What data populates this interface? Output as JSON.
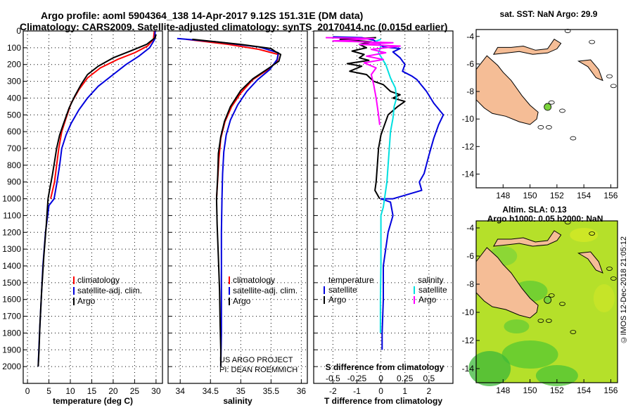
{
  "header": {
    "title_line1": "Argo profile: aoml 5904364_138 14-Apr-2017 9.12S 151.31E (DM data)",
    "title_line2": "Climatology: CARS2009. Satellite-adjusted climatology: synTS_20170414.nc (0.015d earlier)"
  },
  "colors": {
    "climatology": "#ff0000",
    "satellite": "#0000dd",
    "argo": "#000000",
    "salinity_sat": "#00e0e0",
    "salinity_argo": "#ff00ff",
    "land": "#f5bd96",
    "map_bg": "#ffffff"
  },
  "chart_data": [
    {
      "type": "line",
      "name": "temperature-profile",
      "xlabel": "temperature (deg C)",
      "xlim": [
        -1,
        31.5
      ],
      "xticks": [
        0,
        5,
        10,
        15,
        20,
        25,
        30
      ],
      "ylim": [
        0,
        2100
      ],
      "yticks": [
        0,
        100,
        200,
        300,
        400,
        500,
        600,
        700,
        800,
        900,
        1000,
        1100,
        1200,
        1300,
        1400,
        1500,
        1600,
        1700,
        1800,
        1900,
        2000
      ],
      "legend": [
        "climatology",
        "satellite-adj. clim.",
        "Argo"
      ],
      "series": [
        {
          "name": "climatology",
          "color": "#ff0000",
          "points": [
            [
              29.6,
              0
            ],
            [
              29.4,
              50
            ],
            [
              28,
              90
            ],
            [
              25,
              130
            ],
            [
              21,
              170
            ],
            [
              17,
              220
            ],
            [
              14,
              280
            ],
            [
              12,
              350
            ],
            [
              10.2,
              430
            ],
            [
              9,
              520
            ],
            [
              8,
              600
            ],
            [
              7.3,
              700
            ],
            [
              6.8,
              800
            ],
            [
              6.3,
              900
            ],
            [
              5.4,
              1000
            ]
          ]
        },
        {
          "name": "satellite-adj. clim.",
          "color": "#0000dd",
          "points": [
            [
              29.8,
              0
            ],
            [
              29.7,
              50
            ],
            [
              28.5,
              100
            ],
            [
              26,
              150
            ],
            [
              23,
              200
            ],
            [
              20,
              260
            ],
            [
              16.5,
              330
            ],
            [
              14,
              400
            ],
            [
              12,
              470
            ],
            [
              10.2,
              550
            ],
            [
              9,
              620
            ],
            [
              8,
              700
            ],
            [
              7.5,
              800
            ],
            [
              6.9,
              900
            ],
            [
              6.2,
              1000
            ],
            [
              5,
              1040
            ],
            [
              4.2,
              1200
            ],
            [
              3.6,
              1400
            ],
            [
              3.2,
              1600
            ],
            [
              2.8,
              1800
            ],
            [
              2.5,
              2000
            ]
          ]
        },
        {
          "name": "Argo",
          "color": "#000000",
          "points": [
            [
              30,
              20
            ],
            [
              29.8,
              40
            ],
            [
              27.8,
              80
            ],
            [
              24,
              120
            ],
            [
              20,
              160
            ],
            [
              16.5,
              210
            ],
            [
              14,
              260
            ],
            [
              12.5,
              320
            ],
            [
              11,
              390
            ],
            [
              9.7,
              460
            ],
            [
              8.3,
              560
            ],
            [
              7.5,
              620
            ],
            [
              6.8,
              700
            ],
            [
              6.3,
              780
            ],
            [
              5.8,
              860
            ],
            [
              5.2,
              940
            ],
            [
              4.8,
              1000
            ],
            [
              4.4,
              1150
            ],
            [
              3.8,
              1350
            ],
            [
              3.3,
              1550
            ],
            [
              2.9,
              1750
            ],
            [
              2.7,
              1900
            ],
            [
              2.5,
              2000
            ]
          ]
        }
      ]
    },
    {
      "type": "line",
      "name": "salinity-profile",
      "xlabel": "salinity",
      "xlim": [
        33.8,
        36.1
      ],
      "xticks": [
        34,
        34.5,
        35,
        35.5,
        36
      ],
      "ylim": [
        0,
        2100
      ],
      "legend": [
        "climatology",
        "satellite-adj. clim.",
        "Argo"
      ],
      "series": [
        {
          "name": "climatology",
          "color": "#ff0000",
          "points": [
            [
              34.1,
              50
            ],
            [
              34.8,
              80
            ],
            [
              35.3,
              110
            ],
            [
              35.62,
              140
            ],
            [
              35.6,
              180
            ],
            [
              35.45,
              230
            ],
            [
              35.2,
              290
            ],
            [
              35.0,
              370
            ],
            [
              34.85,
              450
            ],
            [
              34.74,
              540
            ],
            [
              34.67,
              640
            ],
            [
              34.64,
              760
            ],
            [
              34.62,
              880
            ],
            [
              34.6,
              1000
            ]
          ]
        },
        {
          "name": "satellite-adj. clim.",
          "color": "#0000dd",
          "points": [
            [
              33.95,
              45
            ],
            [
              34.6,
              65
            ],
            [
              35.3,
              95
            ],
            [
              35.62,
              130
            ],
            [
              35.6,
              170
            ],
            [
              35.48,
              230
            ],
            [
              35.28,
              290
            ],
            [
              35.1,
              360
            ],
            [
              34.95,
              440
            ],
            [
              34.83,
              530
            ],
            [
              34.76,
              620
            ],
            [
              34.72,
              720
            ],
            [
              34.7,
              850
            ],
            [
              34.69,
              1000
            ],
            [
              34.68,
              1200
            ],
            [
              34.68,
              1500
            ],
            [
              34.68,
              1800
            ],
            [
              34.67,
              2000
            ]
          ]
        },
        {
          "name": "Argo",
          "color": "#000000",
          "points": [
            [
              34.2,
              50
            ],
            [
              35.0,
              80
            ],
            [
              35.5,
              105
            ],
            [
              35.58,
              125
            ],
            [
              35.66,
              140
            ],
            [
              35.63,
              180
            ],
            [
              35.45,
              225
            ],
            [
              35.2,
              285
            ],
            [
              35.0,
              355
            ],
            [
              34.83,
              450
            ],
            [
              34.73,
              540
            ],
            [
              34.67,
              630
            ],
            [
              34.63,
              730
            ],
            [
              34.62,
              860
            ],
            [
              34.6,
              1000
            ],
            [
              34.61,
              1150
            ],
            [
              34.63,
              1350
            ],
            [
              34.65,
              1550
            ],
            [
              34.66,
              1750
            ],
            [
              34.67,
              1900
            ],
            [
              34.67,
              2000
            ]
          ]
        }
      ]
    },
    {
      "type": "line",
      "name": "difference-profile",
      "xlabel": "T difference from climatology",
      "xlabel_top": "S difference from climatology",
      "xlim": [
        -2.8,
        3
      ],
      "xticks": [
        -2,
        -1,
        0,
        1,
        2
      ],
      "xticklabels_top": [
        "-0.5",
        "-0.25",
        "0",
        "0.25",
        "0.5"
      ],
      "xticks_top": [
        -2,
        -1,
        0,
        1,
        2
      ],
      "ylim": [
        0,
        2100
      ],
      "legend_left_title": "temperature",
      "legend_right_title": "salinity",
      "legend": [
        "satellite",
        "Argo",
        "satellite",
        "Argo"
      ],
      "series": [
        {
          "name": "temperature satellite",
          "color": "#0000dd",
          "points": [
            [
              -2,
              35
            ],
            [
              -0.8,
              40
            ],
            [
              -0.3,
              55
            ],
            [
              0.1,
              95
            ],
            [
              0.8,
              105
            ],
            [
              0.5,
              125
            ],
            [
              0.8,
              160
            ],
            [
              1.0,
              200
            ],
            [
              0.9,
              240
            ],
            [
              1.3,
              270
            ],
            [
              1.5,
              290
            ],
            [
              1.9,
              360
            ],
            [
              2.2,
              430
            ],
            [
              2.6,
              500
            ],
            [
              2.4,
              560
            ],
            [
              2.2,
              640
            ],
            [
              2.0,
              740
            ],
            [
              1.8,
              850
            ],
            [
              1.6,
              900
            ],
            [
              1.7,
              950
            ],
            [
              0.5,
              1000
            ],
            [
              0,
              1000
            ],
            [
              0.4,
              1020
            ],
            [
              0.5,
              1100
            ],
            [
              0.3,
              1200
            ],
            [
              0.2,
              1300
            ],
            [
              0.1,
              1400
            ],
            [
              0.1,
              1600
            ],
            [
              0.05,
              1800
            ],
            [
              0.05,
              1900
            ]
          ]
        },
        {
          "name": "temperature Argo",
          "color": "#000000",
          "points": [
            [
              -0.2,
              40
            ],
            [
              -1.7,
              50
            ],
            [
              -0.4,
              65
            ],
            [
              -0.9,
              80
            ],
            [
              -0.6,
              100
            ],
            [
              -1.2,
              120
            ],
            [
              -0.7,
              140
            ],
            [
              -0.9,
              160
            ],
            [
              -0.5,
              175
            ],
            [
              -1.4,
              195
            ],
            [
              -0.8,
              210
            ],
            [
              -1.3,
              240
            ],
            [
              -0.6,
              260
            ],
            [
              -0.3,
              300
            ],
            [
              0.1,
              320
            ],
            [
              0.4,
              360
            ],
            [
              0.8,
              380
            ],
            [
              0.5,
              400
            ],
            [
              1.0,
              420
            ],
            [
              0.7,
              450
            ],
            [
              0.3,
              500
            ],
            [
              0.15,
              560
            ],
            [
              0,
              620
            ],
            [
              -0.1,
              700
            ],
            [
              -0.15,
              800
            ],
            [
              -0.2,
              900
            ],
            [
              -0.25,
              950
            ],
            [
              -0.05,
              1000
            ]
          ]
        },
        {
          "name": "salinity satellite",
          "color": "#00e0e0",
          "points": [
            [
              0,
              50
            ],
            [
              -0.2,
              60
            ],
            [
              0,
              90
            ],
            [
              -0.1,
              130
            ],
            [
              0.2,
              200
            ],
            [
              0.4,
              280
            ],
            [
              0.6,
              340
            ],
            [
              0.65,
              400
            ],
            [
              0.55,
              450
            ],
            [
              0.5,
              520
            ],
            [
              0.4,
              600
            ],
            [
              0.35,
              700
            ],
            [
              0.3,
              800
            ],
            [
              0.25,
              900
            ],
            [
              0.15,
              1000
            ],
            [
              0.1,
              1050
            ],
            [
              0,
              1100
            ],
            [
              0,
              1200
            ],
            [
              0,
              1400
            ],
            [
              -0.02,
              1600
            ],
            [
              -0.02,
              1800
            ]
          ]
        },
        {
          "name": "salinity Argo",
          "color": "#ff00ff",
          "points": [
            [
              -2.3,
              40
            ],
            [
              -0.3,
              45
            ],
            [
              -2,
              60
            ],
            [
              0.5,
              70
            ],
            [
              -0.9,
              80
            ],
            [
              0.8,
              90
            ],
            [
              -0.4,
              110
            ],
            [
              0.2,
              130
            ],
            [
              -0.6,
              150
            ],
            [
              0.1,
              170
            ],
            [
              -0.7,
              190
            ],
            [
              -0.2,
              220
            ],
            [
              -0.4,
              260
            ],
            [
              -0.3,
              320
            ],
            [
              -0.2,
              400
            ],
            [
              -0.15,
              450
            ],
            [
              -0.1,
              500
            ],
            [
              -0.05,
              560
            ]
          ]
        }
      ]
    },
    {
      "type": "map",
      "name": "location-map",
      "title": "sat. SST: NaN Argo: 29.9",
      "xlim": [
        146,
        156.5
      ],
      "ylim": [
        -15,
        -3.5
      ],
      "xticks": [
        148,
        150,
        152,
        154,
        156
      ],
      "yticks": [
        -4,
        -6,
        -8,
        -10,
        -12,
        -14
      ],
      "marker": {
        "lon": 151.31,
        "lat": -9.12
      }
    },
    {
      "type": "map",
      "name": "altimetry-map",
      "title_line1": "Altim. SLA: 0.13",
      "title_line2": "Argo h1000: 0.05 h2000: NaN",
      "xlim": [
        146,
        156.5
      ],
      "ylim": [
        -15,
        -3.5
      ],
      "xticks": [
        148,
        150,
        152,
        154,
        156
      ],
      "yticks": [
        -4,
        -6,
        -8,
        -10,
        -12,
        -14
      ],
      "marker": {
        "lon": 151.31,
        "lat": -9.12
      }
    }
  ],
  "labels": {
    "temperature": {
      "clim": "climatology",
      "sat": "satellite-adj. clim.",
      "argo": "Argo"
    },
    "credit_line1": "US ARGO PROJECT",
    "credit_line2": "PI: DEAN ROEMMICH",
    "imos": "©IMOS 12-Dec-2018 21:05:12"
  }
}
